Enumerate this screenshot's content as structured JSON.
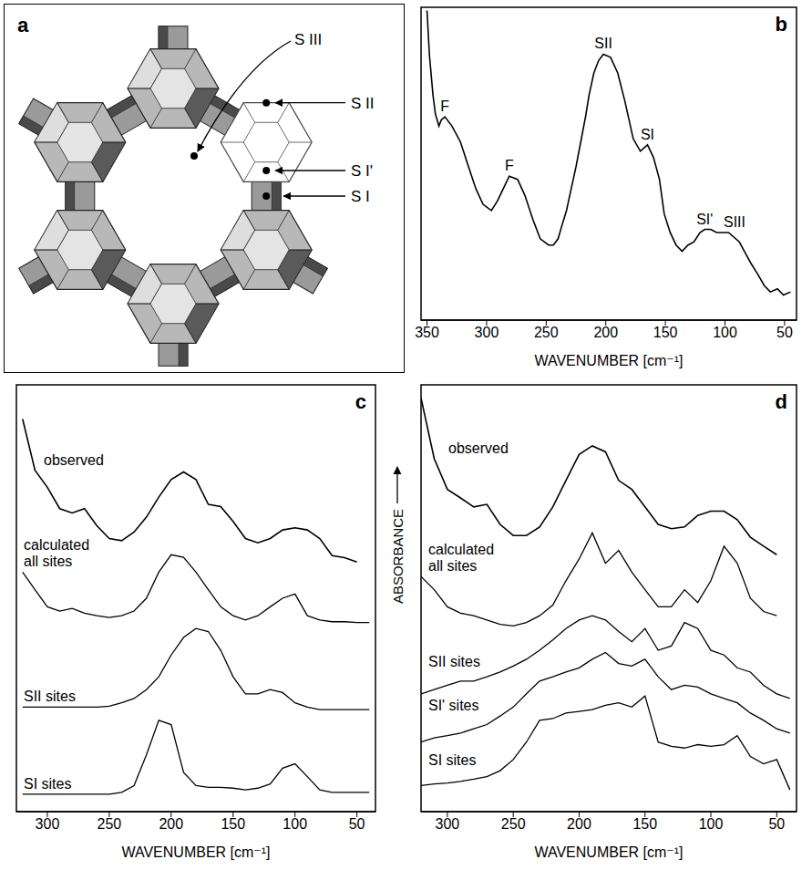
{
  "chart_data": [
    {
      "type": "diagram",
      "panel": "a",
      "labels": [
        "S III",
        "S II",
        "S I'",
        "S I"
      ]
    },
    {
      "type": "line",
      "panel": "b",
      "xlabel": "WAVENUMBER [cm⁻¹]",
      "xlim": [
        355,
        40
      ],
      "xticks": [
        350,
        300,
        250,
        200,
        150,
        100,
        50
      ],
      "ylim": [
        0,
        100
      ],
      "tick_labels": "x",
      "color": "#000000",
      "x": [
        350,
        348,
        345,
        343,
        340,
        338,
        335,
        329,
        322,
        316,
        309,
        303,
        296,
        291,
        286,
        281,
        274,
        268,
        261,
        255,
        248,
        244,
        240,
        237,
        233,
        229,
        225,
        221,
        217,
        214,
        210,
        206,
        202,
        196,
        190,
        184,
        177,
        171,
        165,
        160,
        155,
        151,
        146,
        141,
        136,
        131,
        126,
        121,
        117,
        112,
        107,
        102,
        97,
        88,
        78,
        73,
        67,
        62,
        56,
        51,
        45
      ],
      "values": [
        99,
        85,
        72,
        66,
        62,
        64,
        65,
        62,
        57,
        50,
        42,
        37,
        35,
        38,
        42,
        46,
        45,
        40,
        32,
        26,
        24,
        24,
        26,
        30,
        35,
        42,
        49,
        57,
        65,
        72,
        79,
        83,
        85,
        84,
        79,
        70,
        58,
        54,
        56,
        52,
        45,
        34,
        28,
        24,
        22,
        24,
        25,
        28,
        29,
        29,
        28,
        28,
        28,
        25,
        18,
        15,
        11,
        9,
        10,
        8,
        9
      ],
      "annotations": [
        {
          "text": "F",
          "x": 335
        },
        {
          "text": "F",
          "x": 281
        },
        {
          "text": "SII",
          "x": 202
        },
        {
          "text": "SI",
          "x": 165
        },
        {
          "text": "SI'",
          "x": 117
        },
        {
          "text": "SIII",
          "x": 92
        }
      ]
    },
    {
      "type": "line",
      "panel": "c",
      "xlabel": "WAVENUMBER [cm⁻¹]",
      "xlim": [
        325,
        35
      ],
      "xticks": [
        300,
        250,
        200,
        150,
        100,
        50
      ],
      "ylim": [
        0,
        100
      ],
      "tick_labels": "x",
      "x": [
        320,
        310,
        300,
        290,
        280,
        270,
        260,
        250,
        240,
        230,
        220,
        210,
        200,
        190,
        180,
        170,
        160,
        150,
        140,
        130,
        120,
        110,
        100,
        90,
        80,
        70,
        60,
        50,
        40
      ],
      "series": [
        {
          "name": "observed",
          "color": "#000000",
          "values": [
            92,
            80,
            76,
            71,
            70,
            71,
            67,
            64,
            63.5,
            65.5,
            69,
            73.7,
            77.8,
            79.6,
            77.8,
            72,
            71.5,
            68,
            64,
            63,
            64,
            66,
            66.5,
            66,
            64,
            60,
            59.5,
            58.5,
            null
          ]
        },
        {
          "name": "calculated all sites",
          "color": "#000000",
          "values": [
            56.1,
            52,
            48,
            47,
            47.6,
            46.5,
            45.9,
            45.5,
            45.9,
            47,
            50,
            56.1,
            60.2,
            59.6,
            56.1,
            52,
            48,
            45.9,
            44.9,
            45.9,
            48,
            50,
            51,
            45.9,
            44.9,
            44.5,
            44.5,
            44.3,
            44.3
          ]
        },
        {
          "name": "SII sites",
          "color": "#000000",
          "values": [
            24.5,
            24.5,
            24.5,
            24.5,
            24.5,
            24.5,
            24.5,
            24.7,
            25.5,
            26.5,
            28.6,
            31.6,
            36.7,
            40.8,
            42.9,
            42.2,
            37.8,
            31.6,
            27.6,
            27.6,
            28.6,
            27.9,
            25.5,
            24.5,
            23.9,
            23.9,
            23.9,
            23.9,
            23.9
          ]
        },
        {
          "name": "SI sites",
          "color": "#000000",
          "values": [
            4.1,
            4.1,
            4.1,
            4.1,
            4.1,
            4.1,
            4.1,
            4.1,
            4.5,
            6.1,
            13.3,
            21.4,
            20.4,
            9.2,
            6.1,
            5.7,
            5.7,
            5.5,
            5.1,
            5.5,
            6.5,
            10.2,
            11.2,
            8.2,
            5.1,
            4.5,
            4.5,
            4.5,
            4.5
          ]
        }
      ]
    },
    {
      "type": "line",
      "panel": "d",
      "xlabel": "WAVENUMBER [cm⁻¹]",
      "ylabel": "ABSORBANCE",
      "xlim": [
        320,
        35
      ],
      "xticks": [
        300,
        250,
        200,
        150,
        100,
        50
      ],
      "ylim": [
        0,
        100
      ],
      "tick_labels": "x",
      "x": [
        320,
        310,
        300,
        290,
        280,
        270,
        260,
        250,
        240,
        230,
        220,
        210,
        200,
        190,
        180,
        170,
        160,
        150,
        140,
        130,
        120,
        110,
        100,
        90,
        80,
        70,
        60,
        50,
        40
      ],
      "series": [
        {
          "name": "observed",
          "color": "#000000",
          "values": [
            96.9,
            82.7,
            75.5,
            73.5,
            71.4,
            72,
            67.3,
            64.7,
            64.7,
            66.7,
            71.4,
            77.6,
            83.7,
            85.7,
            84.3,
            77.6,
            75.5,
            71.4,
            67.3,
            66.3,
            66.7,
            69.4,
            70.4,
            70.4,
            68.4,
            64.3,
            62.2,
            60.2,
            null
          ]
        },
        {
          "name": "calculated all sites",
          "color": "#000000",
          "values": [
            55.1,
            52,
            48,
            46.5,
            45.9,
            44.9,
            43.9,
            43.5,
            44.3,
            45.9,
            48.4,
            54.1,
            59.2,
            65.3,
            58.2,
            61.2,
            56.1,
            52,
            48,
            48,
            52,
            49,
            54.1,
            62.2,
            58.2,
            50,
            46.9,
            45.9,
            null
          ]
        },
        {
          "name": "SII sites",
          "color": "#000000",
          "values": [
            27.6,
            28.6,
            29.6,
            30.6,
            30.6,
            31.6,
            32.7,
            34.1,
            35.7,
            37.8,
            40.2,
            42.9,
            44.9,
            45.9,
            44.9,
            42.2,
            39.8,
            42.9,
            37.8,
            38.8,
            44.3,
            42.9,
            37.8,
            36.7,
            33.7,
            32.7,
            29.6,
            27.6,
            26.5
          ]
        },
        {
          "name": "SI' sites",
          "color": "#000000",
          "values": [
            16.3,
            17.3,
            17.8,
            18.4,
            19.4,
            20.4,
            22.4,
            24.5,
            27.6,
            30.6,
            31.6,
            32.7,
            33.7,
            35.7,
            37.3,
            34.7,
            34.1,
            35.7,
            31.6,
            28.6,
            29.6,
            29.2,
            27.6,
            26.5,
            25.5,
            23.1,
            21.4,
            19.4,
            18.4
          ]
        },
        {
          "name": "SI sites",
          "color": "#000000",
          "values": [
            6.1,
            6.5,
            6.7,
            7.1,
            7.6,
            8.2,
            9.6,
            12.2,
            16.3,
            21.4,
            21.8,
            23.1,
            23.5,
            23.9,
            24.9,
            25.5,
            24.5,
            27.1,
            16.3,
            15.3,
            14.9,
            15.7,
            15.3,
            15.7,
            17.8,
            12.9,
            11.2,
            12.2,
            5.1
          ]
        }
      ]
    }
  ]
}
